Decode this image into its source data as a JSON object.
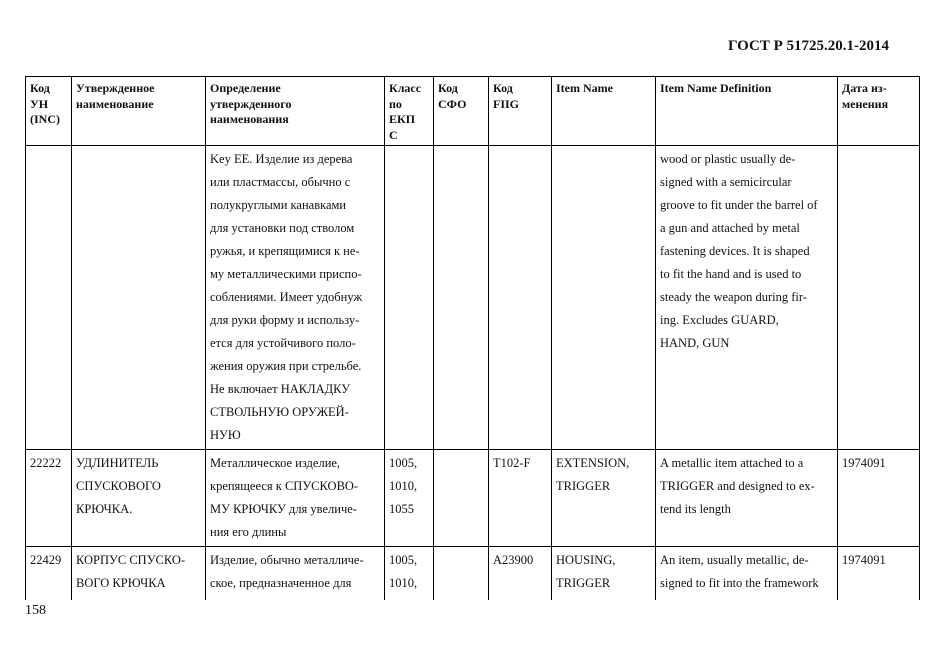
{
  "header": {
    "doc_code": "ГОСТ Р 51725.20.1-2014"
  },
  "table": {
    "columns": [
      "Код\nУН\n(INC)",
      "Утвержденное\nнаименование",
      "Определение\nутвержденного\nнаименования",
      "Класс\nпо\nЕКП\nС",
      "Код\nСФО",
      "Код\nFIIG",
      "Item Name",
      "Item Name Definition",
      "Дата из-\nменения"
    ],
    "rows": [
      [
        "",
        "",
        "Key EE. Изделие из дерева\nили пластмассы, обычно с\nполукруглыми канавками\nдля установки под стволом\nружья, и крепящимися к не-\nму металлическими приспо-\nсоблениями. Имеет удобнуж\nдля руки форму и использу-\nется для устойчивого поло-\nжения оружия при стрельбе.\nНе включает НАКЛАДКУ\nСТВОЛЬНУЮ ОРУЖЕЙ-\nНУЮ",
        "",
        "",
        "",
        "",
        "wood or plastic usually de-\nsigned with a semicircular\ngroove to fit under the barrel of\na gun and attached by metal\nfastening devices. It is shaped\nto fit the hand and is used to\nsteady the weapon during fir-\ning. Excludes GUARD,\nHAND, GUN",
        ""
      ],
      [
        "22222",
        "УДЛИНИТЕЛЬ\nСПУСКОВОГО\nКРЮЧКА.",
        "Металлическое изделие,\nкрепящееся к СПУСКОВО-\nМУ КРЮЧКУ для увеличе-\nния его длины",
        "1005,\n1010,\n1055",
        "",
        "T102-F",
        "EXTENSION,\nTRIGGER",
        "A metallic item attached to a\nTRIGGER and designed to ex-\ntend its length",
        "1974091"
      ],
      [
        "22429",
        "КОРПУС СПУСКО-\nВОГО КРЮЧКА",
        "Изделие, обычно металличе-\nское, предназначенное для",
        "1005,\n1010,",
        "",
        "A23900",
        "HOUSING,\nTRIGGER",
        "An item, usually metallic, de-\nsigned to fit into the framework",
        "1974091"
      ]
    ]
  },
  "footer": {
    "page_number": "158"
  }
}
